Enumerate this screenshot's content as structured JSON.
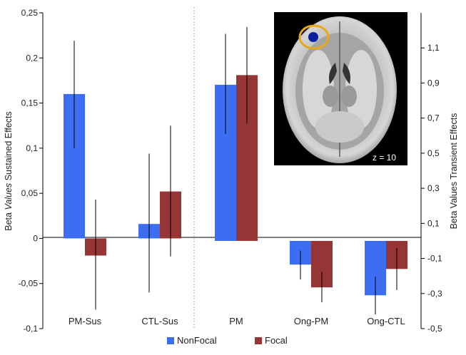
{
  "chart_data": {
    "type": "bar",
    "categories": [
      "PM-Sus",
      "CTL-Sus",
      "PM",
      "Ong-PM",
      "Ong-CTL"
    ],
    "series": [
      {
        "name": "NonFocal",
        "color": "#3d6ef2",
        "values": [
          0.16,
          0.016,
          0.89,
          -0.135,
          -0.31
        ],
        "error_low": [
          0.1,
          -0.06,
          0.61,
          -0.22,
          -0.42
        ],
        "error_high": [
          0.219,
          0.094,
          1.18,
          -0.055,
          -0.205
        ]
      },
      {
        "name": "Focal",
        "color": "#963535",
        "values": [
          -0.019,
          0.052,
          0.945,
          -0.265,
          -0.16
        ],
        "error_low": [
          -0.079,
          -0.02,
          0.67,
          -0.35,
          -0.28
        ],
        "error_high": [
          0.043,
          0.125,
          1.22,
          -0.175,
          -0.04
        ]
      }
    ],
    "left_axis": {
      "label_prefix": "Beta ",
      "label_italic": "Values",
      "label_suffix": " Sustained Effects",
      "range": [
        -0.1,
        0.25
      ],
      "ticks": [
        "0,25",
        "0,2",
        "0,15",
        "0,1",
        "0,05",
        "0",
        "-0,05",
        "-0,1"
      ],
      "applies_to": [
        "PM-Sus",
        "CTL-Sus"
      ]
    },
    "right_axis": {
      "label": "Beta Values Transient Effects",
      "range": [
        -0.5,
        1.3
      ],
      "ticks": [
        "1,1",
        "0,9",
        "0,7",
        "0,5",
        "0,3",
        "0,1",
        "-0,1",
        "-0,3",
        "-0,5"
      ],
      "applies_to": [
        "PM",
        "Ong-PM",
        "Ong-CTL"
      ]
    },
    "legend": {
      "position": "bottom",
      "items": [
        "NonFocal",
        "Focal"
      ]
    },
    "inset": {
      "label": "z = 10",
      "highlight_color": "#e8a817",
      "activation_color": "#0a1ea0"
    },
    "grid": false
  }
}
